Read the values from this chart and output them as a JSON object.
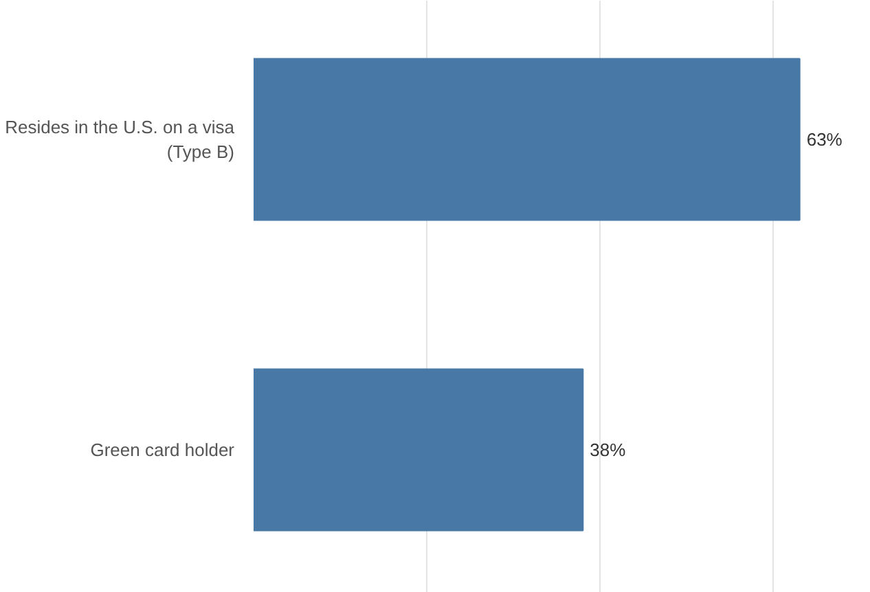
{
  "chart_data": {
    "type": "bar",
    "orientation": "horizontal",
    "categories": [
      "Resides in the U.S. on a visa (Type B)",
      "Green card holder"
    ],
    "values": [
      63,
      38
    ],
    "color": "#4878a6",
    "value_labels": [
      "63%",
      "38%"
    ],
    "grid": "x",
    "tick_labels": "y"
  }
}
